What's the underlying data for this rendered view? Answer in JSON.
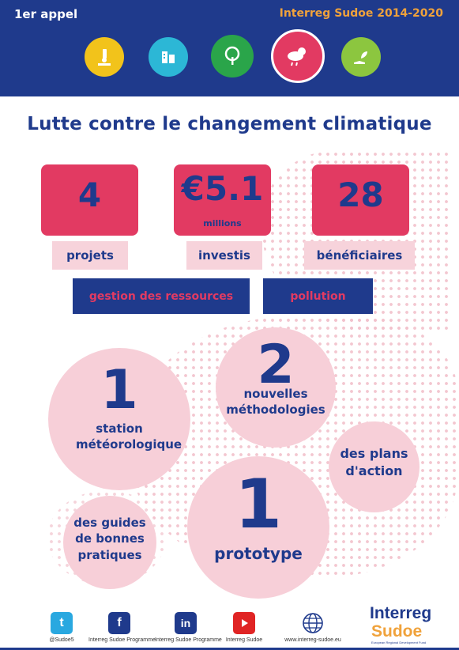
{
  "header": {
    "call": "1er appel",
    "program": "Interreg Sudoe 2014-2020",
    "themes": [
      {
        "icon": "research-microscope-icon",
        "color": "#f2c31b"
      },
      {
        "icon": "business-building-icon",
        "color": "#2cb7d6"
      },
      {
        "icon": "tree-icon",
        "color": "#2aa54a"
      },
      {
        "icon": "weather-cloud-sun-icon",
        "color": "#e23a62"
      },
      {
        "icon": "plant-hand-icon",
        "color": "#8cc63f"
      }
    ]
  },
  "title": "Lutte contre le changement climatique",
  "stats": [
    {
      "value": "4",
      "unit": "",
      "label": "projets"
    },
    {
      "value": "€5.1",
      "unit": "millions",
      "label": "investis"
    },
    {
      "value": "28",
      "unit": "",
      "label": "bénéficiaires"
    }
  ],
  "tags": [
    "gestion des ressources",
    "pollution"
  ],
  "outputs": [
    {
      "number": "1",
      "text": "station météorologique"
    },
    {
      "number": "2",
      "text": "nouvelles méthodologies"
    },
    {
      "number": "",
      "text": "des plans d'action"
    },
    {
      "number": "",
      "text": "des guides de bonnes pratiques"
    },
    {
      "number": "1",
      "text": "prototype"
    }
  ],
  "footer": {
    "social": [
      {
        "icon": "twitter-icon",
        "caption": "@Sudoe5",
        "color": "#29a8e0"
      },
      {
        "icon": "facebook-icon",
        "caption": "Interreg Sudoe Programme",
        "color": "#1f3a8c"
      },
      {
        "icon": "linkedin-icon",
        "caption": "Interreg Sudoe Programme",
        "color": "#1f3a8c"
      },
      {
        "icon": "youtube-icon",
        "caption": "Interreg Sudoe",
        "color": "#e02424"
      },
      {
        "icon": "globe-icon",
        "caption": "www.interreg-sudoe.eu",
        "color": "#1f3a8c"
      }
    ],
    "logo": {
      "line1": "Interreg",
      "line2": "Sudoe",
      "line3": "European Regional Development Fund"
    }
  },
  "colors": {
    "navy": "#1f3a8c",
    "pink": "#e23a62",
    "light_pink": "#f7d3db",
    "orange": "#f0a23b"
  }
}
